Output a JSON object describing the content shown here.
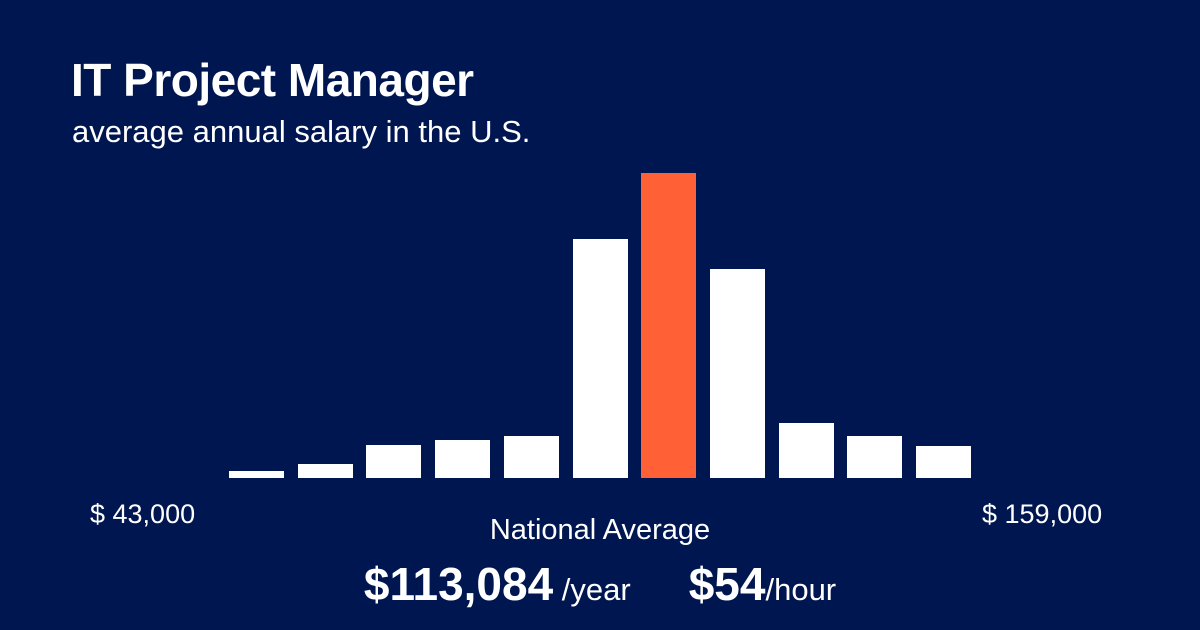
{
  "header": {
    "title": "IT Project Manager",
    "subtitle": "average annual salary in the U.S."
  },
  "range": {
    "min_label": "$ 43,000",
    "max_label": "$ 159,000"
  },
  "average": {
    "label": "National Average",
    "yearly_value": "$113,084",
    "yearly_unit": " /year",
    "hourly_value": "$54",
    "hourly_unit": "/hour"
  },
  "colors": {
    "background": "#001650",
    "bar": "#ffffff",
    "highlight": "#ff6035"
  },
  "chart_data": {
    "type": "bar",
    "title": "IT Project Manager — average annual salary in the U.S.",
    "xlabel": "",
    "ylabel": "",
    "x_range_labels": [
      "$ 43,000",
      "$ 159,000"
    ],
    "categories": [
      "bin1",
      "bin2",
      "bin3",
      "bin4",
      "bin5",
      "bin6",
      "bin7",
      "bin8",
      "bin9",
      "bin10",
      "bin11"
    ],
    "values": [
      7,
      14,
      33,
      38,
      42,
      239,
      305,
      209,
      55,
      42,
      32
    ],
    "highlight_index": 6,
    "highlight_label": "National Average $113,084",
    "grid": false,
    "legend": "none",
    "units": "relative bar height (px)"
  }
}
